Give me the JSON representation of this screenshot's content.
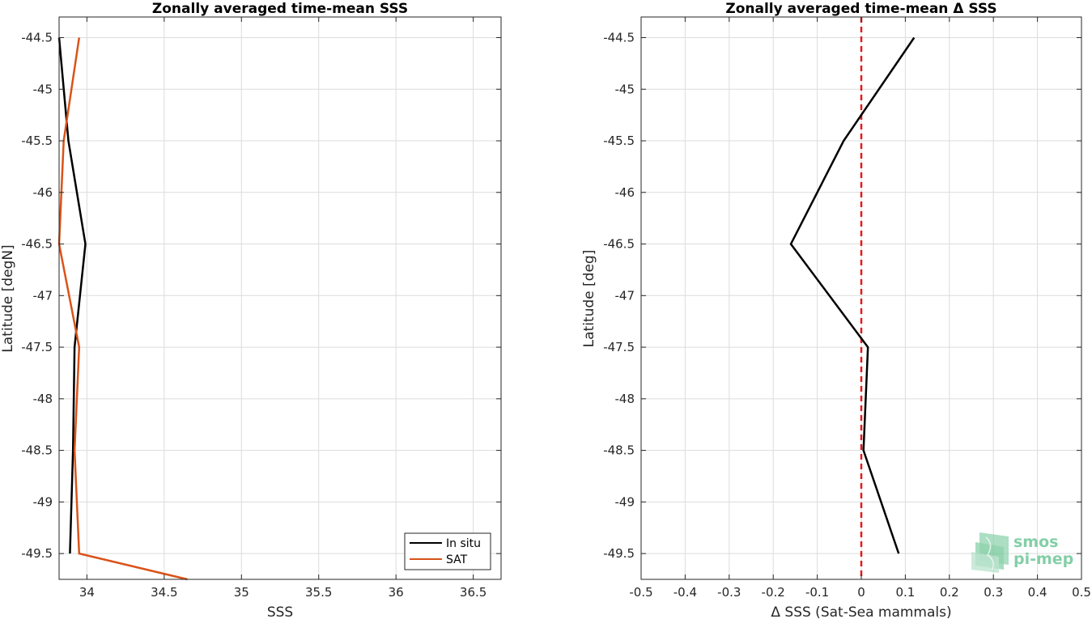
{
  "chart_data": [
    {
      "type": "line",
      "title": "Zonally averaged time-mean SSS",
      "xlabel": "SSS",
      "ylabel": "Latitude [degN]",
      "xlim": [
        33.82,
        36.68
      ],
      "ylim": [
        -49.75,
        -44.3
      ],
      "xticks": [
        34,
        34.5,
        35,
        35.5,
        36,
        36.5
      ],
      "xtick_labels": [
        "34",
        "34.5",
        "35",
        "35.5",
        "36",
        "36.5"
      ],
      "yticks": [
        -44.5,
        -45,
        -45.5,
        -46,
        -46.5,
        -47,
        -47.5,
        -48,
        -48.5,
        -49,
        -49.5
      ],
      "ytick_labels": [
        "-44.5",
        "-45",
        "-45.5",
        "-46",
        "-46.5",
        "-47",
        "-47.5",
        "-48",
        "-48.5",
        "-49",
        "-49.5"
      ],
      "grid": true,
      "legend_position": "bottom-right",
      "series": [
        {
          "name": "In situ",
          "color": "#000000",
          "x": [
            33.82,
            33.88,
            33.99,
            33.92,
            33.91,
            33.89
          ],
          "y": [
            -44.5,
            -45.5,
            -46.5,
            -47.5,
            -48.5,
            -49.5
          ]
        },
        {
          "name": "SAT",
          "color": "#d95319",
          "x": [
            33.95,
            33.85,
            33.82,
            33.95,
            33.92,
            33.95,
            34.65
          ],
          "y": [
            -44.5,
            -45.5,
            -46.5,
            -47.5,
            -48.5,
            -49.5,
            -49.75
          ]
        }
      ]
    },
    {
      "type": "line",
      "title": "Zonally averaged time-mean Δ SSS",
      "xlabel": "Δ SSS (Sat-Sea mammals)",
      "ylabel": "Latitude [deg]",
      "xlim": [
        -0.5,
        0.5
      ],
      "ylim": [
        -49.75,
        -44.3
      ],
      "xticks": [
        -0.5,
        -0.4,
        -0.3,
        -0.2,
        -0.1,
        0,
        0.1,
        0.2,
        0.3,
        0.4,
        0.5
      ],
      "xtick_labels": [
        "-0.5",
        "-0.4",
        "-0.3",
        "-0.2",
        "-0.1",
        "0",
        "0.1",
        "0.2",
        "0.3",
        "0.4",
        "0.5"
      ],
      "yticks": [
        -44.5,
        -45,
        -45.5,
        -46,
        -46.5,
        -47,
        -47.5,
        -48,
        -48.5,
        -49,
        -49.5
      ],
      "ytick_labels": [
        "-44.5",
        "-45",
        "-45.5",
        "-46",
        "-46.5",
        "-47",
        "-47.5",
        "-48",
        "-48.5",
        "-49",
        "-49.5"
      ],
      "grid": true,
      "reference_line": {
        "x": 0,
        "color": "#e41a1c",
        "style": "dashed"
      },
      "series": [
        {
          "color": "#000000",
          "x": [
            0.12,
            -0.04,
            -0.16,
            0.015,
            0.005,
            0.085
          ],
          "y": [
            -44.5,
            -45.5,
            -46.5,
            -47.5,
            -48.5,
            -49.5
          ]
        }
      ]
    }
  ],
  "logo": {
    "line1": "smos",
    "line2": "pi-mep",
    "color": "#5cbf8a"
  }
}
